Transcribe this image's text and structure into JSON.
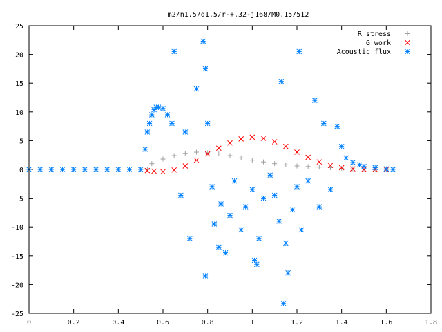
{
  "chart_data": {
    "type": "scatter",
    "title": "m2/n1.5/q1.5/r-+.32-j168/M0.15/512",
    "xlabel": "",
    "ylabel": "",
    "xlim": [
      0,
      1.8
    ],
    "ylim": [
      -25,
      25
    ],
    "x_ticks": [
      "0",
      "0.2",
      "0.4",
      "0.6",
      "0.8",
      "1",
      "1.2",
      "1.4",
      "1.6",
      "1.8"
    ],
    "y_ticks": [
      "25",
      "20",
      "15",
      "10",
      "5",
      "0",
      "-5",
      "-10",
      "-15",
      "-20",
      "-25"
    ],
    "grid": false,
    "legend_position": "top-right",
    "series": [
      {
        "name": "R stress",
        "marker": "plus",
        "color": "#a0a0a0",
        "points": [
          [
            0,
            0
          ],
          [
            0.1,
            0
          ],
          [
            0.2,
            0
          ],
          [
            0.3,
            0
          ],
          [
            0.4,
            0
          ],
          [
            0.5,
            0
          ],
          [
            0.53,
            0
          ],
          [
            0.55,
            1.0
          ],
          [
            0.6,
            1.8
          ],
          [
            0.65,
            2.4
          ],
          [
            0.7,
            2.8
          ],
          [
            0.75,
            3.0
          ],
          [
            0.8,
            2.9
          ],
          [
            0.85,
            2.7
          ],
          [
            0.9,
            2.4
          ],
          [
            0.95,
            2.0
          ],
          [
            1.0,
            1.6
          ],
          [
            1.05,
            1.3
          ],
          [
            1.1,
            1.0
          ],
          [
            1.15,
            0.8
          ],
          [
            1.2,
            0.6
          ],
          [
            1.25,
            0.5
          ],
          [
            1.3,
            0.4
          ],
          [
            1.35,
            0.3
          ],
          [
            1.4,
            0.2
          ],
          [
            1.45,
            0.1
          ],
          [
            1.5,
            0.05
          ],
          [
            1.55,
            0
          ],
          [
            1.6,
            0
          ],
          [
            1.63,
            0
          ]
        ]
      },
      {
        "name": "G work",
        "marker": "cross",
        "color": "#ff0000",
        "points": [
          [
            0.53,
            -0.2
          ],
          [
            0.56,
            -0.3
          ],
          [
            0.6,
            -0.4
          ],
          [
            0.65,
            -0.1
          ],
          [
            0.7,
            0.6
          ],
          [
            0.75,
            1.6
          ],
          [
            0.8,
            2.7
          ],
          [
            0.85,
            3.7
          ],
          [
            0.9,
            4.6
          ],
          [
            0.95,
            5.3
          ],
          [
            1.0,
            5.6
          ],
          [
            1.05,
            5.4
          ],
          [
            1.1,
            4.8
          ],
          [
            1.15,
            4.0
          ],
          [
            1.2,
            3.0
          ],
          [
            1.25,
            2.1
          ],
          [
            1.3,
            1.3
          ],
          [
            1.35,
            0.7
          ],
          [
            1.4,
            0.3
          ],
          [
            1.45,
            0.1
          ],
          [
            1.5,
            0
          ],
          [
            1.55,
            0
          ],
          [
            1.6,
            0
          ]
        ]
      },
      {
        "name": "Acoustic flux",
        "marker": "star",
        "color": "#0080ff",
        "points": [
          [
            0,
            0
          ],
          [
            0.05,
            0
          ],
          [
            0.1,
            0
          ],
          [
            0.15,
            0
          ],
          [
            0.2,
            0
          ],
          [
            0.25,
            0
          ],
          [
            0.3,
            0
          ],
          [
            0.35,
            0
          ],
          [
            0.4,
            0
          ],
          [
            0.45,
            0
          ],
          [
            0.5,
            0
          ],
          [
            0.52,
            3.5
          ],
          [
            0.53,
            6.5
          ],
          [
            0.54,
            8.0
          ],
          [
            0.55,
            9.5
          ],
          [
            0.56,
            10.4
          ],
          [
            0.57,
            10.8
          ],
          [
            0.58,
            10.8
          ],
          [
            0.6,
            10.6
          ],
          [
            0.62,
            9.5
          ],
          [
            0.64,
            8.0
          ],
          [
            0.65,
            20.5
          ],
          [
            0.68,
            -4.5
          ],
          [
            0.7,
            6.5
          ],
          [
            0.72,
            -12.0
          ],
          [
            0.75,
            14.0
          ],
          [
            0.78,
            22.3
          ],
          [
            0.79,
            17.5
          ],
          [
            0.79,
            -18.5
          ],
          [
            0.8,
            8.0
          ],
          [
            0.82,
            -3.0
          ],
          [
            0.83,
            -9.5
          ],
          [
            0.85,
            -13.5
          ],
          [
            0.86,
            -6.0
          ],
          [
            0.88,
            -14.5
          ],
          [
            0.9,
            -8.0
          ],
          [
            0.92,
            -2.0
          ],
          [
            0.95,
            -10.5
          ],
          [
            0.97,
            -6.5
          ],
          [
            1.0,
            -3.5
          ],
          [
            1.01,
            -15.8
          ],
          [
            1.02,
            -16.5
          ],
          [
            1.03,
            -12.0
          ],
          [
            1.05,
            -5.0
          ],
          [
            1.08,
            -1.0
          ],
          [
            1.1,
            -4.5
          ],
          [
            1.12,
            -9.0
          ],
          [
            1.13,
            15.3
          ],
          [
            1.14,
            -23.3
          ],
          [
            1.15,
            -12.8
          ],
          [
            1.16,
            -18.0
          ],
          [
            1.18,
            -7.0
          ],
          [
            1.2,
            -3.0
          ],
          [
            1.21,
            20.5
          ],
          [
            1.22,
            -10.5
          ],
          [
            1.25,
            -2.0
          ],
          [
            1.28,
            12.0
          ],
          [
            1.3,
            -6.5
          ],
          [
            1.32,
            8.0
          ],
          [
            1.35,
            -3.5
          ],
          [
            1.38,
            7.5
          ],
          [
            1.4,
            4.0
          ],
          [
            1.42,
            2.0
          ],
          [
            1.45,
            1.2
          ],
          [
            1.48,
            0.8
          ],
          [
            1.5,
            0.5
          ],
          [
            1.55,
            0.3
          ],
          [
            1.6,
            0.1
          ],
          [
            1.63,
            0
          ]
        ]
      }
    ]
  }
}
